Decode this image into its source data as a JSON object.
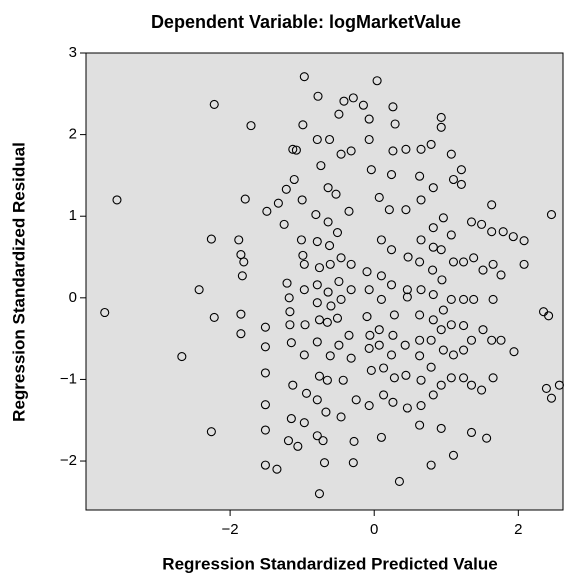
{
  "chart_data": {
    "type": "scatter",
    "title": "Dependent Variable: logMarketValue",
    "x_label": "Regression Standardized Predicted Value",
    "y_label": "Regression Standardized Residual",
    "xlim": [
      -4.0,
      2.62
    ],
    "ylim": [
      -2.6,
      3.0
    ],
    "xticks": [
      {
        "value": -2,
        "label": "−2"
      },
      0,
      2
    ],
    "yticks": [
      {
        "value": -2,
        "label": "−2"
      },
      {
        "value": -1,
        "label": "−1"
      },
      0,
      1,
      2,
      3
    ],
    "grid": false,
    "marker_color": "#000000",
    "background_color": "#e0e0e0",
    "x": [
      -3.74,
      -3.57,
      -2.67,
      -2.43,
      -2.22,
      -2.26,
      -2.22,
      -2.26,
      -1.71,
      -1.79,
      -1.88,
      -1.85,
      -1.81,
      -1.83,
      -1.85,
      -1.85,
      -1.51,
      -1.51,
      -1.51,
      -1.51,
      -1.51,
      -1.51,
      -1.35,
      -1.49,
      -1.33,
      -1.25,
      -1.22,
      -1.21,
      -1.18,
      -1.17,
      -1.17,
      -1.15,
      -1.13,
      -1.15,
      -1.19,
      -1.11,
      -1.13,
      -1.08,
      -0.99,
      -0.97,
      -1.0,
      -1.01,
      -0.99,
      -0.97,
      -0.97,
      -0.96,
      -0.97,
      -0.94,
      -0.97,
      -1.06,
      -0.79,
      -0.81,
      -0.79,
      -0.76,
      -0.79,
      -0.79,
      -0.76,
      -0.79,
      -0.76,
      -0.79,
      -0.79,
      -0.76,
      -0.78,
      -0.74,
      -0.62,
      -0.64,
      -0.64,
      -0.62,
      -0.61,
      -0.64,
      -0.6,
      -0.65,
      -0.61,
      -0.65,
      -0.67,
      -0.71,
      -0.69,
      -0.49,
      -0.46,
      -0.53,
      -0.51,
      -0.46,
      -0.49,
      -0.46,
      -0.51,
      -0.49,
      -0.43,
      -0.46,
      -0.42,
      -0.29,
      -0.32,
      -0.35,
      -0.32,
      -0.32,
      -0.35,
      -0.32,
      -0.25,
      -0.28,
      -0.29,
      -0.15,
      -0.07,
      -0.07,
      -0.04,
      -0.1,
      -0.07,
      -0.1,
      -0.06,
      -0.07,
      -0.04,
      -0.07,
      0.04,
      0.07,
      0.1,
      0.1,
      0.1,
      0.07,
      0.07,
      0.13,
      0.13,
      0.1,
      0.26,
      0.29,
      0.26,
      0.24,
      0.21,
      0.24,
      0.24,
      0.28,
      0.26,
      0.24,
      0.28,
      0.26,
      0.35,
      0.44,
      0.44,
      0.47,
      0.46,
      0.46,
      0.43,
      0.44,
      0.46,
      0.65,
      0.63,
      0.65,
      0.65,
      0.63,
      0.65,
      0.63,
      0.63,
      0.63,
      0.65,
      0.65,
      0.63,
      0.79,
      0.82,
      0.82,
      0.82,
      0.81,
      0.82,
      0.82,
      0.79,
      0.79,
      0.82,
      0.79,
      0.93,
      0.93,
      0.96,
      0.93,
      0.94,
      0.96,
      0.93,
      0.96,
      0.93,
      0.93,
      1.07,
      1.1,
      1.07,
      1.1,
      1.07,
      1.07,
      1.1,
      1.07,
      1.1,
      1.21,
      1.21,
      1.24,
      1.24,
      1.24,
      1.24,
      1.24,
      1.35,
      1.38,
      1.38,
      1.35,
      1.35,
      1.35,
      1.49,
      1.51,
      1.51,
      1.49,
      1.56,
      1.63,
      1.63,
      1.65,
      1.65,
      1.63,
      1.65,
      1.79,
      1.76,
      1.76,
      1.93,
      1.94,
      2.08,
      2.08,
      2.35,
      2.42,
      2.46,
      2.39,
      2.46,
      2.57
    ],
    "values": [
      -0.18,
      1.2,
      -0.72,
      0.1,
      2.37,
      0.72,
      -0.24,
      -1.64,
      2.11,
      1.21,
      0.71,
      0.53,
      0.44,
      0.27,
      -0.2,
      -0.44,
      -0.36,
      -0.6,
      -0.92,
      -1.31,
      -1.62,
      -2.05,
      -2.1,
      1.06,
      1.16,
      0.9,
      1.33,
      0.18,
      0.0,
      -0.17,
      -0.33,
      -0.55,
      -1.07,
      -1.48,
      -1.75,
      1.45,
      1.82,
      1.81,
      2.12,
      2.71,
      1.2,
      0.71,
      0.52,
      0.41,
      0.1,
      -0.33,
      -0.7,
      -1.17,
      -1.53,
      -1.82,
      1.94,
      1.02,
      0.69,
      0.37,
      0.16,
      -0.06,
      -0.27,
      -0.54,
      -0.96,
      -1.25,
      -1.69,
      -2.4,
      2.47,
      1.62,
      1.94,
      1.35,
      0.93,
      0.64,
      0.41,
      0.07,
      -0.1,
      -0.3,
      -0.71,
      -1.01,
      -1.4,
      -1.75,
      -2.02,
      2.25,
      1.76,
      1.27,
      0.8,
      0.49,
      0.2,
      -0.02,
      -0.25,
      -0.58,
      -1.01,
      -1.46,
      2.41,
      2.45,
      1.8,
      1.06,
      0.41,
      0.1,
      -0.46,
      -0.74,
      -1.25,
      -1.76,
      -2.02,
      2.36,
      2.19,
      1.94,
      1.57,
      0.32,
      0.1,
      -0.23,
      -0.46,
      -0.62,
      -0.89,
      -1.32,
      2.66,
      1.23,
      0.71,
      0.27,
      -0.02,
      -0.39,
      -0.58,
      -0.86,
      -1.19,
      -1.71,
      2.34,
      2.13,
      1.8,
      1.51,
      1.08,
      0.59,
      0.16,
      -0.21,
      -0.46,
      -0.7,
      -0.98,
      -1.28,
      -2.25,
      1.82,
      1.08,
      0.5,
      0.1,
      0.01,
      -0.58,
      -0.95,
      -1.35,
      1.82,
      1.49,
      1.2,
      0.71,
      0.44,
      0.1,
      -0.21,
      -0.52,
      -0.71,
      -1.01,
      -1.32,
      -1.56,
      1.88,
      1.35,
      0.86,
      0.62,
      0.34,
      0.04,
      -0.27,
      -0.52,
      -0.85,
      -1.19,
      -2.05,
      2.21,
      2.09,
      0.98,
      0.59,
      0.22,
      -0.15,
      -0.39,
      -0.64,
      -1.07,
      -1.6,
      1.76,
      1.45,
      0.77,
      0.44,
      -0.02,
      -0.33,
      -0.7,
      -0.98,
      -1.93,
      1.57,
      1.39,
      0.44,
      -0.02,
      -0.34,
      -0.64,
      -0.98,
      0.93,
      0.49,
      -0.02,
      -0.52,
      -1.07,
      -1.65,
      0.9,
      0.34,
      -0.39,
      -1.13,
      -1.72,
      1.14,
      0.81,
      0.41,
      -0.02,
      -0.52,
      -0.98,
      0.81,
      0.28,
      -0.52,
      0.75,
      -0.66,
      0.7,
      0.41,
      -0.17,
      -0.22,
      1.02,
      -1.11,
      -1.23,
      -1.07
    ]
  }
}
